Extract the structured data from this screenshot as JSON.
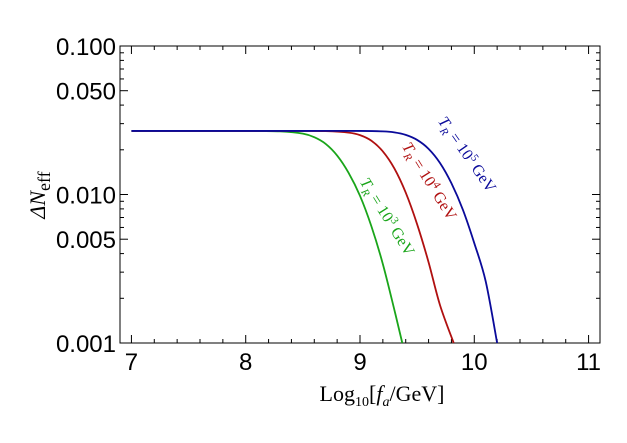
{
  "chart_data": {
    "type": "line",
    "xlabel": {
      "main": "Log",
      "sub": "10",
      "open": "[",
      "var": "f",
      "varsub": "a",
      "rest": "/GeV]"
    },
    "ylabel": {
      "main": "ΔN",
      "sub": "eff"
    },
    "xlim": [
      6.9,
      11.1
    ],
    "ylim": [
      0.001,
      0.1
    ],
    "yscale": "log",
    "grid": false,
    "xticks": [
      7,
      8,
      9,
      10,
      11
    ],
    "xtick_labels": [
      "7",
      "8",
      "9",
      "10",
      "11"
    ],
    "yticks": [
      0.001,
      0.005,
      0.01,
      0.05,
      0.1
    ],
    "ytick_labels": [
      "0.001",
      "0.005",
      "0.010",
      "0.050",
      "0.100"
    ],
    "series": [
      {
        "name": "T_R = 10^3 GeV",
        "label": {
          "T": "T",
          "Tsub": "R",
          "mid": " = 10",
          "exp": "3",
          "unit": " GeV"
        },
        "color": "#1aa51a",
        "x": [
          7.0,
          7.5,
          8.0,
          8.3,
          8.5,
          8.6,
          8.7,
          8.8,
          8.9,
          9.0,
          9.1,
          9.2,
          9.3,
          9.37
        ],
        "y": [
          0.0268,
          0.0268,
          0.0268,
          0.0266,
          0.0257,
          0.0243,
          0.0219,
          0.0183,
          0.014,
          0.0098,
          0.0061,
          0.0034,
          0.00168,
          0.001
        ]
      },
      {
        "name": "T_R = 10^4 GeV",
        "label": {
          "T": "T",
          "Tsub": "R",
          "mid": " = 10",
          "exp": "4",
          "unit": " GeV"
        },
        "color": "#b01010",
        "x": [
          7.0,
          7.5,
          8.0,
          8.5,
          8.7,
          8.9,
          9.0,
          9.1,
          9.2,
          9.3,
          9.4,
          9.5,
          9.6,
          9.7,
          9.82
        ],
        "y": [
          0.0268,
          0.0268,
          0.0268,
          0.0268,
          0.0267,
          0.0261,
          0.0251,
          0.023,
          0.0195,
          0.015,
          0.0103,
          0.0063,
          0.0035,
          0.0018,
          0.001
        ]
      },
      {
        "name": "T_R = 10^5 GeV",
        "label": {
          "T": "T",
          "Tsub": "R",
          "mid": " = 10",
          "exp": "5",
          "unit": " GeV"
        },
        "color": "#0a0a9a",
        "x": [
          7.0,
          7.5,
          8.0,
          8.5,
          9.0,
          9.2,
          9.3,
          9.4,
          9.5,
          9.6,
          9.7,
          9.8,
          9.9,
          10.0,
          10.1,
          10.2
        ],
        "y": [
          0.0268,
          0.0268,
          0.0268,
          0.0268,
          0.0268,
          0.0266,
          0.0262,
          0.0252,
          0.0233,
          0.0203,
          0.0163,
          0.0119,
          0.0079,
          0.0047,
          0.0026,
          0.001
        ]
      }
    ]
  }
}
